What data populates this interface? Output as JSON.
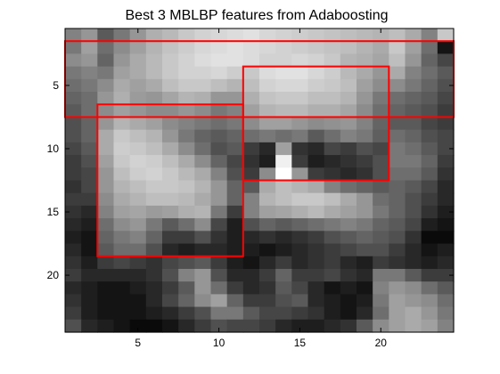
{
  "chart_data": {
    "type": "heatmap",
    "title": "Best 3 MBLBP features from Adaboosting",
    "xlabel": "",
    "ylabel": "",
    "colormap": "gray",
    "xlim": [
      0.5,
      24.5
    ],
    "ylim": [
      24.5,
      0.5
    ],
    "y_reversed": true,
    "x_ticks": [
      5,
      10,
      15,
      20
    ],
    "x_tick_labels": [
      "5",
      "10",
      "15",
      "20"
    ],
    "y_ticks": [
      5,
      10,
      15,
      20
    ],
    "y_tick_labels": [
      "5",
      "10",
      "15",
      "20"
    ],
    "grid": false,
    "feature_color": "#ff0000",
    "features": [
      {
        "x0": 0.5,
        "y0": 1.5,
        "x1": 24.5,
        "y1": 7.5
      },
      {
        "x0": 2.5,
        "y0": 6.5,
        "x1": 11.5,
        "y1": 18.5
      },
      {
        "x0": 11.5,
        "y0": 3.5,
        "x1": 20.5,
        "y1": 12.5
      }
    ],
    "pixels": [
      [
        130,
        150,
        90,
        120,
        150,
        175,
        185,
        200,
        210,
        215,
        220,
        225,
        215,
        210,
        205,
        200,
        195,
        190,
        185,
        180,
        190,
        170,
        130,
        200
      ],
      [
        120,
        160,
        110,
        140,
        160,
        180,
        195,
        205,
        215,
        220,
        225,
        220,
        215,
        210,
        205,
        200,
        195,
        190,
        180,
        170,
        200,
        160,
        110,
        20
      ],
      [
        140,
        150,
        100,
        150,
        170,
        185,
        200,
        210,
        220,
        225,
        225,
        220,
        210,
        210,
        215,
        210,
        200,
        180,
        175,
        165,
        190,
        150,
        100,
        70
      ],
      [
        120,
        130,
        120,
        160,
        170,
        185,
        200,
        210,
        210,
        215,
        205,
        200,
        220,
        225,
        225,
        215,
        205,
        185,
        170,
        150,
        170,
        130,
        110,
        90
      ],
      [
        110,
        120,
        140,
        170,
        160,
        170,
        190,
        200,
        200,
        190,
        180,
        190,
        210,
        215,
        215,
        205,
        200,
        190,
        160,
        140,
        140,
        120,
        100,
        80
      ],
      [
        100,
        110,
        150,
        175,
        155,
        150,
        165,
        180,
        175,
        150,
        150,
        175,
        195,
        200,
        200,
        190,
        190,
        180,
        150,
        120,
        110,
        100,
        90,
        70
      ],
      [
        90,
        110,
        140,
        160,
        150,
        140,
        140,
        150,
        140,
        120,
        130,
        160,
        180,
        185,
        185,
        175,
        175,
        165,
        140,
        110,
        100,
        90,
        80,
        60
      ],
      [
        80,
        100,
        150,
        180,
        170,
        160,
        140,
        130,
        120,
        110,
        120,
        140,
        160,
        160,
        150,
        140,
        145,
        150,
        130,
        100,
        90,
        90,
        70,
        60
      ],
      [
        80,
        100,
        170,
        200,
        190,
        180,
        150,
        120,
        100,
        90,
        100,
        110,
        120,
        110,
        120,
        90,
        110,
        130,
        120,
        95,
        110,
        100,
        80,
        70
      ],
      [
        70,
        90,
        170,
        205,
        200,
        190,
        170,
        140,
        110,
        80,
        90,
        60,
        40,
        160,
        50,
        40,
        70,
        60,
        80,
        70,
        120,
        110,
        90,
        70
      ],
      [
        60,
        80,
        160,
        200,
        210,
        205,
        190,
        170,
        140,
        100,
        70,
        50,
        30,
        240,
        60,
        30,
        40,
        50,
        60,
        80,
        120,
        120,
        100,
        60
      ],
      [
        60,
        70,
        150,
        190,
        205,
        210,
        200,
        185,
        170,
        130,
        80,
        60,
        140,
        255,
        150,
        60,
        50,
        40,
        50,
        80,
        110,
        110,
        90,
        50
      ],
      [
        50,
        70,
        150,
        180,
        190,
        200,
        200,
        195,
        180,
        150,
        100,
        90,
        170,
        190,
        180,
        170,
        130,
        110,
        100,
        90,
        100,
        90,
        70,
        40
      ],
      [
        60,
        60,
        140,
        170,
        180,
        190,
        190,
        185,
        170,
        150,
        100,
        130,
        180,
        190,
        200,
        200,
        190,
        170,
        150,
        110,
        100,
        80,
        60,
        40
      ],
      [
        50,
        40,
        130,
        160,
        165,
        155,
        160,
        175,
        180,
        120,
        60,
        130,
        160,
        165,
        175,
        185,
        170,
        160,
        150,
        120,
        100,
        80,
        50,
        30
      ],
      [
        40,
        30,
        110,
        140,
        150,
        120,
        90,
        110,
        140,
        70,
        30,
        80,
        100,
        90,
        100,
        110,
        120,
        130,
        120,
        100,
        90,
        70,
        30,
        20
      ],
      [
        30,
        20,
        100,
        120,
        130,
        100,
        60,
        60,
        80,
        50,
        30,
        40,
        50,
        40,
        50,
        60,
        80,
        90,
        100,
        90,
        80,
        50,
        10,
        10
      ],
      [
        40,
        20,
        90,
        110,
        110,
        80,
        40,
        30,
        40,
        40,
        30,
        30,
        20,
        30,
        40,
        50,
        60,
        70,
        80,
        80,
        60,
        40,
        20,
        30
      ],
      [
        50,
        30,
        60,
        70,
        60,
        50,
        70,
        80,
        90,
        60,
        30,
        20,
        40,
        60,
        40,
        50,
        60,
        40,
        30,
        60,
        50,
        40,
        30,
        40
      ],
      [
        60,
        40,
        40,
        40,
        40,
        50,
        80,
        130,
        150,
        80,
        40,
        40,
        60,
        100,
        60,
        60,
        70,
        50,
        40,
        120,
        120,
        90,
        60,
        60
      ],
      [
        40,
        30,
        20,
        20,
        30,
        40,
        60,
        90,
        150,
        110,
        60,
        40,
        50,
        90,
        70,
        40,
        20,
        30,
        20,
        130,
        150,
        140,
        110,
        90
      ],
      [
        50,
        30,
        20,
        20,
        20,
        40,
        70,
        100,
        140,
        160,
        100,
        60,
        60,
        80,
        90,
        40,
        30,
        20,
        30,
        120,
        160,
        150,
        140,
        110
      ],
      [
        60,
        30,
        20,
        20,
        20,
        30,
        40,
        60,
        80,
        120,
        120,
        90,
        70,
        70,
        60,
        50,
        30,
        20,
        40,
        110,
        160,
        170,
        150,
        120
      ],
      [
        80,
        40,
        30,
        20,
        10,
        10,
        20,
        40,
        60,
        80,
        70,
        70,
        60,
        40,
        30,
        30,
        40,
        50,
        90,
        140,
        160,
        170,
        160,
        130
      ]
    ]
  }
}
